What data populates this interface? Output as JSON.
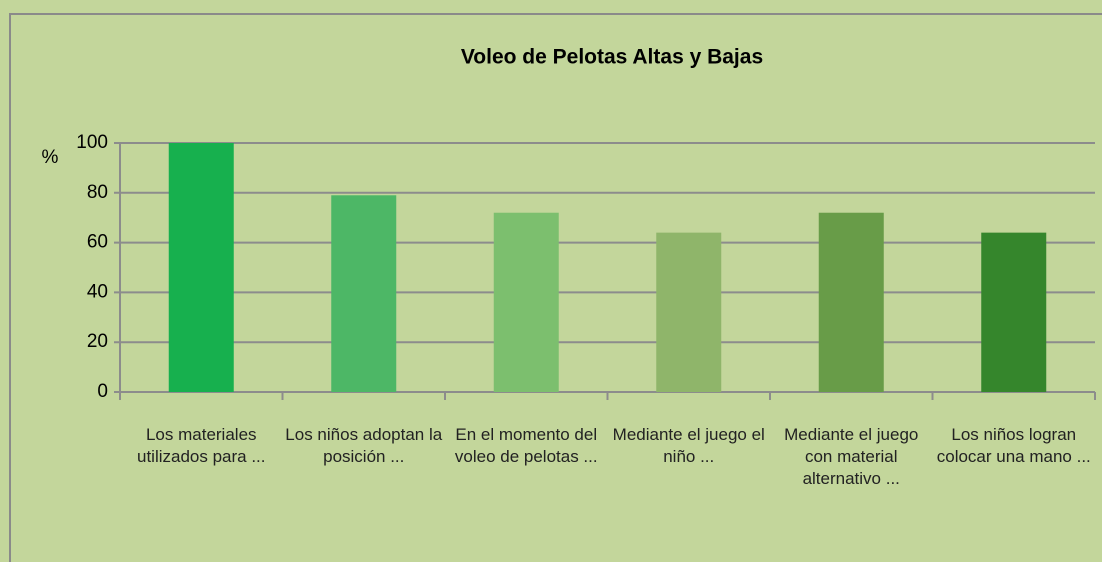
{
  "chart_data": {
    "type": "bar",
    "title": "Voleo de Pelotas  Altas  y Bajas",
    "y_label": "%",
    "categories": [
      "Los materiales utilizados para ...",
      "Los niños adoptan la posición ...",
      "En el momento del voleo de pelotas ...",
      "Mediante el juego el niño ...",
      "Mediante el juego con material alternativo ...",
      "Los niños logran colocar una mano ..."
    ],
    "values": [
      100,
      79,
      72,
      64,
      72,
      64
    ],
    "colors": [
      "#17b04e",
      "#4db766",
      "#7cbf6e",
      "#8fb56a",
      "#689c48",
      "#35862c"
    ],
    "ylim": [
      0,
      100
    ],
    "yticks": [
      0,
      20,
      40,
      60,
      80,
      100
    ],
    "grid": true
  }
}
